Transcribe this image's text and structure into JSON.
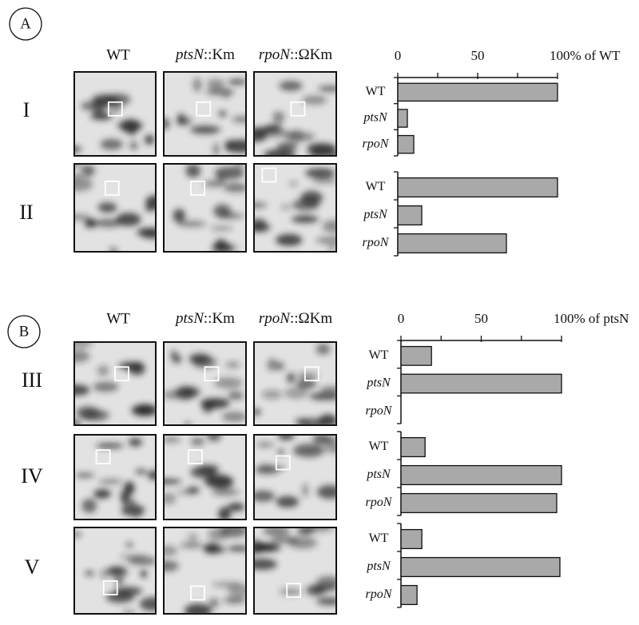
{
  "panels": [
    {
      "label": "A",
      "columns": [
        "WT",
        {
          "gene": "ptsN",
          "suffix": "::Km"
        },
        {
          "gene": "rpoN",
          "suffix": "::ΩKm"
        }
      ]
    },
    {
      "label": "B",
      "columns": [
        "WT",
        {
          "gene": "ptsN",
          "suffix": "::Km"
        },
        {
          "gene": "rpoN",
          "suffix": "::ΩKm"
        }
      ]
    }
  ],
  "chart_data": [
    {
      "type": "bar",
      "orientation": "horizontal",
      "title": "I",
      "categories": [
        "WT",
        "ptsN",
        "rpoN"
      ],
      "italic_categories": [
        false,
        true,
        true
      ],
      "values": [
        100,
        6,
        10
      ],
      "xlim": [
        0,
        100
      ],
      "xticks": [
        0,
        50,
        {
          "value": 100,
          "label": "100% of WT"
        }
      ],
      "minor_xticks": [
        25,
        75
      ],
      "color": "#a9a9a9"
    },
    {
      "type": "bar",
      "orientation": "horizontal",
      "title": "II",
      "categories": [
        "WT",
        "ptsN",
        "rpoN"
      ],
      "italic_categories": [
        false,
        true,
        true
      ],
      "values": [
        100,
        15,
        68
      ],
      "xlim": [
        0,
        100
      ],
      "color": "#a9a9a9"
    },
    {
      "type": "bar",
      "orientation": "horizontal",
      "title": "III",
      "categories": [
        "WT",
        "ptsN",
        "rpoN"
      ],
      "italic_categories": [
        false,
        true,
        true
      ],
      "values": [
        19,
        100,
        0
      ],
      "xlim": [
        0,
        100
      ],
      "xticks": [
        0,
        50,
        {
          "value": 100,
          "label": "100% of ptsN"
        }
      ],
      "minor_xticks": [
        25,
        75
      ],
      "color": "#a9a9a9"
    },
    {
      "type": "bar",
      "orientation": "horizontal",
      "title": "IV",
      "categories": [
        "WT",
        "ptsN",
        "rpoN"
      ],
      "italic_categories": [
        false,
        true,
        true
      ],
      "values": [
        15,
        100,
        97
      ],
      "xlim": [
        0,
        100
      ],
      "color": "#a9a9a9"
    },
    {
      "type": "bar",
      "orientation": "horizontal",
      "title": "V",
      "categories": [
        "WT",
        "ptsN",
        "rpoN"
      ],
      "italic_categories": [
        false,
        true,
        true
      ],
      "values": [
        13,
        99,
        10
      ],
      "xlim": [
        0,
        100
      ],
      "color": "#a9a9a9"
    }
  ]
}
